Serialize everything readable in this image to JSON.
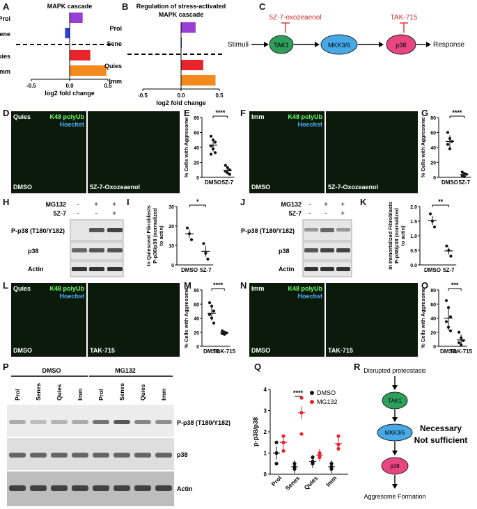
{
  "panels": {
    "A": "A",
    "B": "B",
    "C": "C",
    "D": "D",
    "E": "E",
    "F": "F",
    "G": "G",
    "H": "H",
    "I": "I",
    "J": "J",
    "K": "K",
    "L": "L",
    "M": "M",
    "N": "N",
    "O": "O",
    "P": "P",
    "Q": "Q",
    "R": "R"
  },
  "chart_data": [
    {
      "type": "bar",
      "title": "MAPK cascade",
      "categories": [
        "Prol",
        "Sene",
        "Quies",
        "Imm"
      ],
      "values": [
        0.17,
        -0.06,
        0.27,
        0.48
      ],
      "xlabel": "log2 fold change",
      "ylabel": "",
      "xlim": [
        -0.5,
        0.5
      ],
      "xticks": [
        "-0.5",
        "0.0",
        "0.5"
      ],
      "colors": [
        "#9a3fd4",
        "#2a3fe0",
        "#e8252a",
        "#f28a1e"
      ]
    },
    {
      "type": "bar",
      "title": "Regulation of stress-activated MAPK cascade",
      "categories": [
        "Prol",
        "Sene",
        "Quies",
        "Imm"
      ],
      "values": [
        0.19,
        0.0,
        0.29,
        0.45
      ],
      "xlabel": "log2 fold change",
      "ylabel": "",
      "xlim": [
        -0.5,
        0.5
      ],
      "xticks": [
        "-0.5",
        "0.0",
        "0.5"
      ],
      "colors": [
        "#9a3fd4",
        "#2a3fe0",
        "#e8252a",
        "#f28a1e"
      ]
    },
    {
      "type": "scatter",
      "panel": "E",
      "ylabel": "% Cells with Aggresome",
      "categories": [
        "DMSO",
        "5Z-7"
      ],
      "ylim": [
        0,
        80
      ],
      "yticks": [
        "0",
        "20",
        "40",
        "60",
        "80"
      ],
      "significance": "****",
      "points": [
        [
          55,
          50,
          47,
          42,
          38,
          33,
          31
        ],
        [
          16,
          13,
          10,
          8,
          6,
          4
        ]
      ],
      "means": [
        43,
        9
      ]
    },
    {
      "type": "scatter",
      "panel": "G",
      "ylabel": "% Cells with Aggresome",
      "categories": [
        "DMSO",
        "5Z-7"
      ],
      "ylim": [
        0,
        80
      ],
      "yticks": [
        "0",
        "20",
        "40",
        "60",
        "80"
      ],
      "significance": "****",
      "points": [
        [
          60,
          52,
          48,
          44,
          38
        ],
        [
          7,
          5,
          4,
          2,
          1
        ]
      ],
      "means": [
        48,
        4
      ]
    },
    {
      "type": "scatter",
      "panel": "I",
      "ylabel": "In Quiescent Fibroblasts P-p38/p38 (normalized to actin)",
      "categories": [
        "DMSO",
        "5Z-7"
      ],
      "ylim": [
        0,
        30
      ],
      "yticks": [
        "0",
        "10",
        "20",
        "30"
      ],
      "significance": "*",
      "points": [
        [
          19,
          16,
          13
        ],
        [
          11,
          6,
          3
        ]
      ],
      "means": [
        16,
        7
      ]
    },
    {
      "type": "scatter",
      "panel": "K",
      "ylabel": "In Immortalized Fibroblasts P-p38/p38 (normalized to actin)",
      "categories": [
        "DMSO",
        "5Z-7"
      ],
      "ylim": [
        0,
        2.0
      ],
      "yticks": [
        "0.0",
        "0.5",
        "1.0",
        "1.5",
        "2.0"
      ],
      "significance": "**",
      "points": [
        [
          1.75,
          1.5,
          1.3
        ],
        [
          0.65,
          0.5,
          0.3
        ]
      ],
      "means": [
        1.52,
        0.48
      ]
    },
    {
      "type": "scatter",
      "panel": "M",
      "ylabel": "% Cells with Aggresome",
      "categories": [
        "DMSO",
        "TAK-715"
      ],
      "ylim": [
        0,
        80
      ],
      "yticks": [
        "0",
        "20",
        "40",
        "60",
        "80"
      ],
      "significance": "****",
      "points": [
        [
          62,
          57,
          50,
          45,
          40,
          33
        ],
        [
          22,
          20,
          19,
          18,
          17
        ]
      ],
      "means": [
        47,
        19
      ]
    },
    {
      "type": "scatter",
      "panel": "O",
      "ylabel": "% Cells with Aggresome",
      "categories": [
        "DMSO",
        "TAK-715"
      ],
      "ylim": [
        0,
        80
      ],
      "yticks": [
        "0",
        "20",
        "40",
        "60",
        "80"
      ],
      "significance": "***",
      "points": [
        [
          65,
          55,
          42,
          35,
          27,
          22
        ],
        [
          20,
          12,
          8,
          5,
          2
        ]
      ],
      "means": [
        40,
        9
      ]
    },
    {
      "type": "scatter",
      "panel": "Q",
      "ylabel": "p-p38/p38",
      "categories": [
        "Prol",
        "Senes",
        "Quies",
        "Imm"
      ],
      "ylim": [
        0,
        4
      ],
      "yticks": [
        "0",
        "1",
        "2",
        "3",
        "4"
      ],
      "significance": "****",
      "series": [
        {
          "name": "DMSO",
          "color": "#111111",
          "points": [
            [
              1.5,
              1.0,
              0.5
            ],
            [
              0.5,
              0.35,
              0.25
            ],
            [
              0.8,
              0.6,
              0.5
            ],
            [
              0.5,
              0.35,
              0.25
            ]
          ],
          "means": [
            1.0,
            0.35,
            0.6,
            0.35
          ]
        },
        {
          "name": "MG132",
          "color": "#e8252a",
          "points": [
            [
              1.8,
              1.5,
              1.1
            ],
            [
              3.6,
              2.9,
              1.9
            ],
            [
              1.0,
              0.9,
              0.8
            ],
            [
              1.8,
              1.4,
              1.2
            ]
          ],
          "means": [
            1.5,
            2.9,
            0.9,
            1.45
          ]
        }
      ]
    }
  ],
  "A": {
    "title": "MAPK cascade",
    "cats": [
      "Prol",
      "Sene",
      "Quies",
      "Imm"
    ],
    "xlabel": "log2 fold change",
    "ticks": [
      "-0.5",
      "0.0",
      "0.5"
    ]
  },
  "B": {
    "title": "Regulation of stress-activated MAPK cascade",
    "cats": [
      "Prol",
      "Sene",
      "Quies",
      "Imm"
    ],
    "xlabel": "log2 fold change",
    "ticks": [
      "-0.5",
      "0.0",
      "0.5"
    ]
  },
  "C": {
    "inhibitor1": "5Z-7-oxozeaenol",
    "inhibitor2": "TAK-715",
    "stimuli": "Stimuli",
    "node1": "TAK1",
    "node2": "MKK3/6",
    "node3": "p38",
    "response": "Response"
  },
  "D": {
    "corner": "Quies",
    "stain1": "K48 polyUb",
    "stain2": "Hoechst",
    "left": "DMSO",
    "right": "5Z-7-Oxozeaenol"
  },
  "F": {
    "corner": "Imm",
    "stain1": "K48 polyUb",
    "stain2": "Hoechst",
    "left": "DMSO",
    "right": "5Z-7-Oxozeaenol"
  },
  "L": {
    "corner": "Quies",
    "stain1": "K48 polyUb",
    "stain2": "Hoechst",
    "left": "DMSO",
    "right": "TAK-715"
  },
  "N": {
    "corner": "Imm",
    "stain1": "K48 polyUb",
    "stain2": "Hoechst",
    "left": "DMSO",
    "right": "TAK-715"
  },
  "E": {
    "ylabel": "% Cells with Aggresome",
    "cats": [
      "DMSO",
      "5Z-7"
    ],
    "sig": "****",
    "ticks": [
      "0",
      "20",
      "40",
      "60",
      "80"
    ]
  },
  "G": {
    "ylabel": "% Cells with Aggresome",
    "cats": [
      "DMSO",
      "5Z-7"
    ],
    "sig": "****",
    "ticks": [
      "0",
      "20",
      "40",
      "60",
      "80"
    ]
  },
  "I": {
    "ylabel": "In Quiescent Fibroblasts P-p38/p38 (normalized to actin)",
    "cats": [
      "DMSO",
      "5Z-7"
    ],
    "sig": "*",
    "ticks": [
      "0",
      "10",
      "20",
      "30"
    ]
  },
  "K": {
    "ylabel": "In Immortalized Fibroblasts P-p38/p38 (normalized to actin)",
    "cats": [
      "DMSO",
      "5Z-7"
    ],
    "sig": "**",
    "ticks": [
      "0.0",
      "0.5",
      "1.0",
      "1.5",
      "2.0"
    ]
  },
  "M": {
    "ylabel": "% Cells with Aggresome",
    "cats": [
      "DMSO",
      "TAK-715"
    ],
    "sig": "****",
    "ticks": [
      "0",
      "20",
      "40",
      "60",
      "80"
    ]
  },
  "O": {
    "ylabel": "% Cells with Aggresome",
    "cats": [
      "DMSO",
      "TAK-715"
    ],
    "sig": "***",
    "ticks": [
      "0",
      "20",
      "40",
      "60",
      "80"
    ]
  },
  "H": {
    "mg132": "MG132",
    "z57": "5Z-7",
    "row1": "P-p38 (T180/Y182)",
    "row2": "p38",
    "row3": "Actin",
    "plus": "+",
    "minus": "-"
  },
  "J": {
    "mg132": "MG132",
    "z57": "5Z-7",
    "row1": "P-p38 (T180/Y182)",
    "row2": "p38",
    "row3": "Actin",
    "plus": "+",
    "minus": "-"
  },
  "P": {
    "dmso": "DMSO",
    "mg132": "MG132",
    "lanes": [
      "Prol",
      "Senes",
      "Quies",
      "Imm",
      "Prol",
      "Senes",
      "Quies",
      "Imm"
    ],
    "row1": "P-p38 (T180/Y182)",
    "row2": "p38",
    "row3": "Actin"
  },
  "Q": {
    "ylabel": "p-p38/p38",
    "cats": [
      "Prol",
      "Senes",
      "Quies",
      "Imm"
    ],
    "sig": "****",
    "legend1": "DMSO",
    "legend2": "MG132",
    "ticks": [
      "0",
      "1",
      "2",
      "3",
      "4"
    ]
  },
  "R": {
    "top": "Disrupted proteostasis",
    "n1": "TAK1",
    "n2": "MKK3/6",
    "n3": "p38",
    "bottom": "Aggresome Formation",
    "note1": "Necessary",
    "note2": "Not sufficient"
  }
}
